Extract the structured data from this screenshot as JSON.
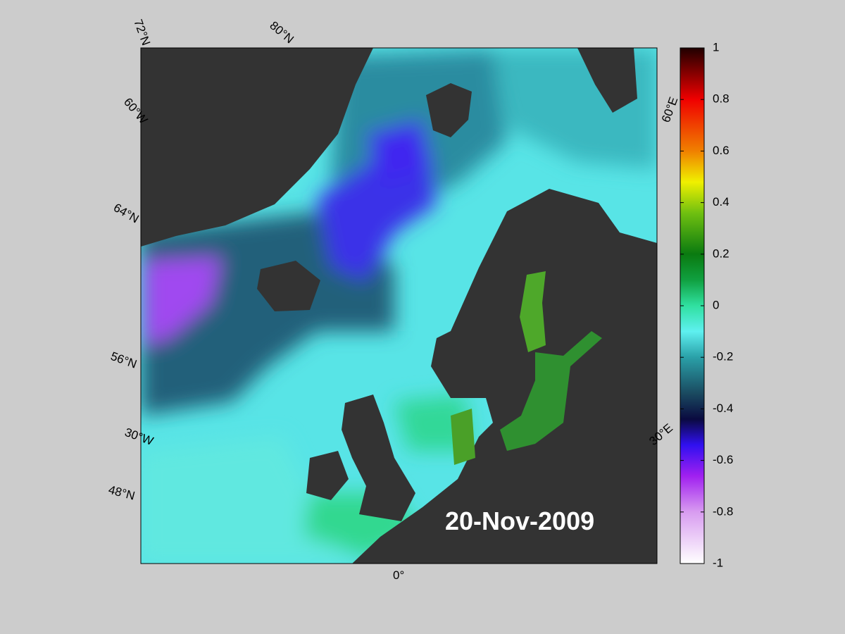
{
  "map": {
    "date": "20-Nov-2009",
    "labels": [
      "72°N",
      "80°N",
      "60°W",
      "64°N",
      "56°N",
      "30°W",
      "48°N",
      "0°",
      "30°E",
      "60°E"
    ]
  },
  "colorbar": {
    "lim": [
      -1,
      1
    ],
    "ticks": [
      1,
      0.8,
      0.6,
      0.4,
      0.2,
      0,
      -0.2,
      -0.4,
      -0.6,
      -0.8,
      -1
    ]
  }
}
